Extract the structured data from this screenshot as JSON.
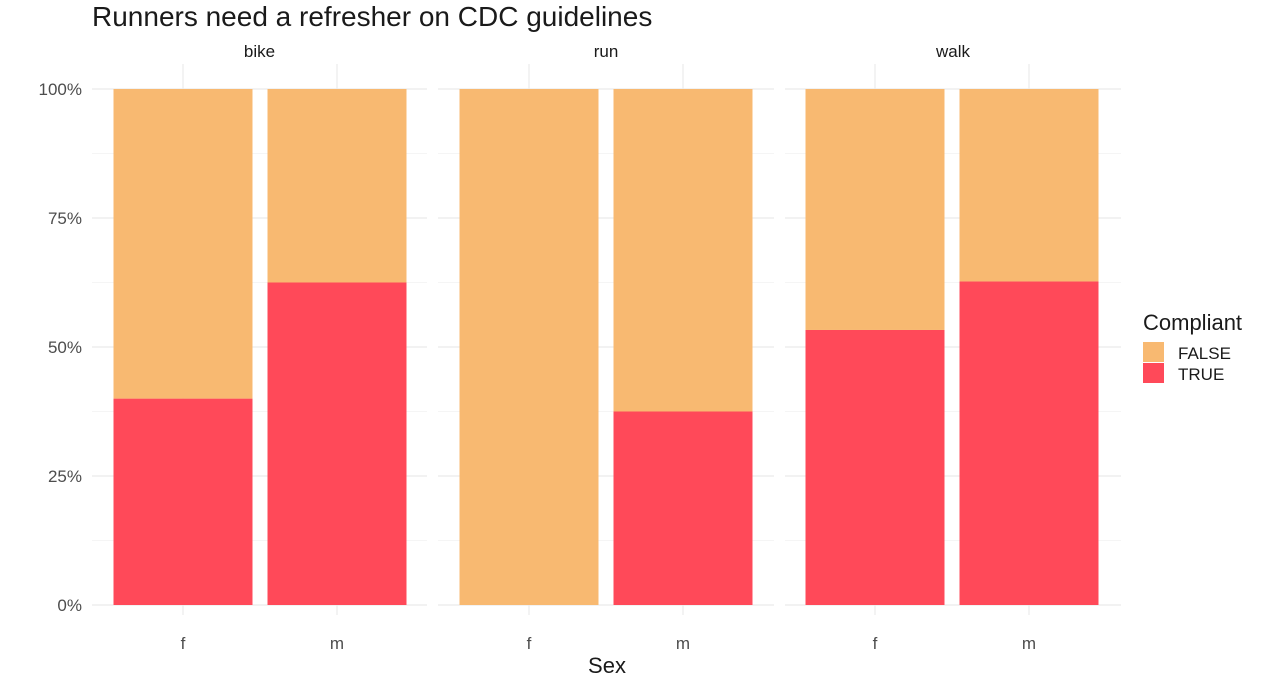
{
  "chart_data": {
    "type": "bar",
    "stacked": true,
    "normalized": true,
    "title": "Runners need a refresher on CDC guidelines",
    "xlabel": "Sex",
    "ylabel": "",
    "ylim": [
      0,
      1
    ],
    "yticks": [
      "0%",
      "25%",
      "50%",
      "75%",
      "100%"
    ],
    "grid": true,
    "legend": {
      "title": "Compliant",
      "position": "right",
      "entries": [
        {
          "name": "FALSE",
          "color": "#F8B971"
        },
        {
          "name": "TRUE",
          "color": "#FF4959"
        }
      ]
    },
    "facets": [
      {
        "label": "bike",
        "categories": [
          "f",
          "m"
        ],
        "series": [
          {
            "name": "TRUE",
            "values": [
              0.4,
              0.625
            ]
          },
          {
            "name": "FALSE",
            "values": [
              0.6,
              0.375
            ]
          }
        ]
      },
      {
        "label": "run",
        "categories": [
          "f",
          "m"
        ],
        "series": [
          {
            "name": "TRUE",
            "values": [
              0.0,
              0.375
            ]
          },
          {
            "name": "FALSE",
            "values": [
              1.0,
              0.625
            ]
          }
        ]
      },
      {
        "label": "walk",
        "categories": [
          "f",
          "m"
        ],
        "series": [
          {
            "name": "TRUE",
            "values": [
              0.533,
              0.627
            ]
          },
          {
            "name": "FALSE",
            "values": [
              0.467,
              0.373
            ]
          }
        ]
      }
    ]
  }
}
